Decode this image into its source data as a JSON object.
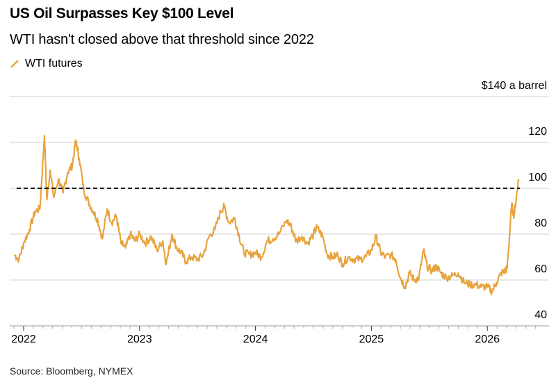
{
  "header": {
    "title": "US Oil Surpasses Key $100 Level",
    "subtitle": "WTI hasn't closed above that threshold since 2022"
  },
  "footer": {
    "source": "Source: Bloomberg, NYMEX"
  },
  "colors": {
    "series": "#e8a33d",
    "threshold": "#000000",
    "grid": "#cccccc"
  },
  "chart_data": {
    "type": "line",
    "title": "US Oil Surpasses Key $100 Level",
    "subtitle": "WTI hasn't closed above that threshold since 2022",
    "xlabel": "",
    "ylabel": "$ a barrel",
    "ylim": [
      40,
      140
    ],
    "xlim": [
      2021.88,
      2026.5
    ],
    "y_ticks": [
      {
        "v": 140,
        "label": "$140 a barrel"
      },
      {
        "v": 120,
        "label": "120"
      },
      {
        "v": 100,
        "label": "100"
      },
      {
        "v": 80,
        "label": "80"
      },
      {
        "v": 60,
        "label": "60"
      },
      {
        "v": 40,
        "label": "40"
      }
    ],
    "x_ticks": [
      {
        "v": 2022,
        "label": "2022"
      },
      {
        "v": 2023,
        "label": "2023"
      },
      {
        "v": 2024,
        "label": "2024"
      },
      {
        "v": 2025,
        "label": "2025"
      },
      {
        "v": 2026,
        "label": "2026"
      }
    ],
    "threshold": {
      "value": 100,
      "style": "dashed"
    },
    "legend": {
      "position": "top-left",
      "entries": [
        "WTI futures"
      ]
    },
    "grid": true,
    "series": [
      {
        "name": "WTI futures",
        "x": [
          2021.92,
          2021.96,
          2022.0,
          2022.05,
          2022.1,
          2022.14,
          2022.18,
          2022.2,
          2022.23,
          2022.26,
          2022.3,
          2022.34,
          2022.38,
          2022.42,
          2022.45,
          2022.48,
          2022.52,
          2022.56,
          2022.6,
          2022.64,
          2022.68,
          2022.72,
          2022.76,
          2022.8,
          2022.84,
          2022.88,
          2022.92,
          2022.96,
          2023.0,
          2023.05,
          2023.1,
          2023.15,
          2023.2,
          2023.23,
          2023.28,
          2023.32,
          2023.36,
          2023.4,
          2023.45,
          2023.5,
          2023.55,
          2023.6,
          2023.65,
          2023.7,
          2023.73,
          2023.77,
          2023.82,
          2023.86,
          2023.9,
          2023.95,
          2024.0,
          2024.05,
          2024.1,
          2024.15,
          2024.2,
          2024.27,
          2024.31,
          2024.35,
          2024.4,
          2024.45,
          2024.5,
          2024.53,
          2024.58,
          2024.62,
          2024.67,
          2024.71,
          2024.75,
          2024.8,
          2024.85,
          2024.9,
          2024.95,
          2025.0,
          2025.04,
          2025.08,
          2025.12,
          2025.17,
          2025.21,
          2025.25,
          2025.29,
          2025.33,
          2025.37,
          2025.41,
          2025.45,
          2025.48,
          2025.52,
          2025.56,
          2025.6,
          2025.65,
          2025.7,
          2025.75,
          2025.8,
          2025.85,
          2025.9,
          2025.95,
          2026.0,
          2026.04,
          2026.08,
          2026.12,
          2026.15,
          2026.17,
          2026.19,
          2026.21,
          2026.23,
          2026.25,
          2026.27
        ],
        "y": [
          71,
          69,
          76,
          82,
          90,
          91,
          123,
          95,
          108,
          96,
          104,
          98,
          107,
          110,
          121,
          113,
          99,
          94,
          90,
          86,
          78,
          91,
          85,
          88,
          76,
          74,
          80,
          77,
          80,
          76,
          79,
          73,
          77,
          67,
          80,
          74,
          72,
          68,
          70,
          69,
          71,
          79,
          82,
          90,
          92,
          85,
          87,
          79,
          72,
          71,
          72,
          70,
          77,
          78,
          80,
          86,
          83,
          77,
          79,
          76,
          80,
          83,
          79,
          71,
          70,
          71,
          67,
          70,
          69,
          69,
          70,
          73,
          79,
          72,
          70,
          71,
          69,
          61,
          57,
          63,
          60,
          61,
          73,
          66,
          64,
          66,
          63,
          61,
          62,
          63,
          59,
          58,
          58,
          57,
          57,
          55,
          59,
          63,
          64,
          65,
          78,
          93,
          88,
          96,
          104
        ]
      }
    ]
  }
}
